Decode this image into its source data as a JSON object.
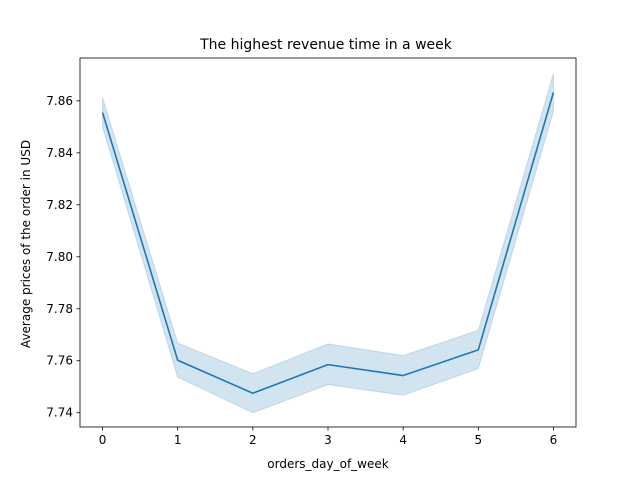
{
  "chart_data": {
    "type": "line",
    "title": "The highest revenue time in a week",
    "xlabel": "orders_day_of_week",
    "ylabel": "Average prices of the order in USD",
    "x": [
      0,
      1,
      2,
      3,
      4,
      5,
      6
    ],
    "series": [
      {
        "values": [
          7.8555,
          7.7602,
          7.7475,
          7.7585,
          7.7543,
          7.7642,
          7.8633
        ],
        "ci_lower": [
          7.85,
          7.7537,
          7.74,
          7.7508,
          7.7467,
          7.757,
          7.856
        ],
        "ci_upper": [
          7.8612,
          7.7668,
          7.755,
          7.7665,
          7.762,
          7.7717,
          7.8705
        ],
        "color": "#1f77b4"
      }
    ],
    "xticks": [
      "0",
      "1",
      "2",
      "3",
      "4",
      "5",
      "6"
    ],
    "yticks": [
      "7.74",
      "7.76",
      "7.78",
      "7.80",
      "7.82",
      "7.84",
      "7.86"
    ],
    "xlim": [
      -0.3,
      6.3
    ],
    "ylim": [
      7.7345,
      7.8765
    ],
    "grid": false,
    "band_color": "#1f77b4"
  }
}
